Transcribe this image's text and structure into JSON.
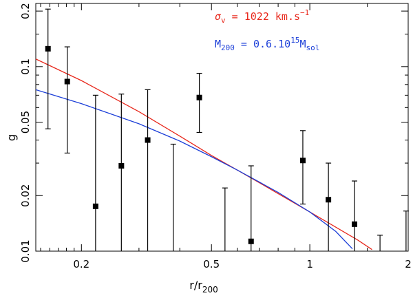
{
  "chart_data": {
    "type": "scatter",
    "xscale": "log",
    "yscale": "log",
    "xlim": [
      0.145,
      2.0
    ],
    "ylim": [
      0.01,
      0.22
    ],
    "xlabel": "r/r",
    "xlabel_sub": "200",
    "ylabel": "g",
    "xticks": [
      {
        "value": 0.2,
        "label": "0.2"
      },
      {
        "value": 0.5,
        "label": "0.5"
      },
      {
        "value": 1,
        "label": "1"
      },
      {
        "value": 2,
        "label": "2"
      }
    ],
    "yticks": [
      {
        "value": 0.01,
        "label": "0.01"
      },
      {
        "value": 0.02,
        "label": "0.02"
      },
      {
        "value": 0.05,
        "label": "0.05"
      },
      {
        "value": 0.1,
        "label": "0.1"
      },
      {
        "value": 0.2,
        "label": "0.2"
      }
    ],
    "points": [
      {
        "x": 0.158,
        "y": 0.125,
        "ylo": 0.046,
        "yhi": 0.205
      },
      {
        "x": 0.181,
        "y": 0.083,
        "ylo": 0.034,
        "yhi": 0.128
      },
      {
        "x": 0.221,
        "y": 0.0175,
        "ylo": 0.01,
        "yhi": 0.07
      },
      {
        "x": 0.265,
        "y": 0.029,
        "ylo": 0.01,
        "yhi": 0.071
      },
      {
        "x": 0.319,
        "y": 0.04,
        "ylo": 0.01,
        "yhi": 0.075
      },
      {
        "x": 0.382,
        "y": null,
        "ylo": 0.01,
        "yhi": 0.038
      },
      {
        "x": 0.459,
        "y": 0.068,
        "ylo": 0.044,
        "yhi": 0.092
      },
      {
        "x": 0.55,
        "y": null,
        "ylo": 0.01,
        "yhi": 0.022
      },
      {
        "x": 0.661,
        "y": 0.0113,
        "ylo": 0.01,
        "yhi": 0.029
      },
      {
        "x": 0.952,
        "y": 0.031,
        "ylo": 0.018,
        "yhi": 0.045
      },
      {
        "x": 1.14,
        "y": 0.019,
        "ylo": 0.01,
        "yhi": 0.03
      },
      {
        "x": 1.37,
        "y": 0.014,
        "ylo": 0.01,
        "yhi": 0.024
      },
      {
        "x": 1.64,
        "y": null,
        "ylo": 0.01,
        "yhi": 0.0122
      },
      {
        "x": 1.97,
        "y": null,
        "ylo": 0.01,
        "yhi": 0.0165
      }
    ],
    "series": [
      {
        "name": "sigma_v",
        "color": "#e8281c",
        "label_symbol": "σ",
        "label_sub": "v",
        "label_text": " = 1022 km.s",
        "label_sup": "−1",
        "x": [
          0.145,
          0.2,
          0.3,
          0.4,
          0.5,
          0.6,
          0.7,
          0.8,
          1.0,
          1.2,
          1.4,
          1.55
        ],
        "y": [
          0.11,
          0.084,
          0.057,
          0.042,
          0.033,
          0.0275,
          0.0235,
          0.0205,
          0.0163,
          0.0135,
          0.0115,
          0.0102
        ]
      },
      {
        "name": "M200",
        "color": "#1c3fd8",
        "label_text": "M",
        "label_sub": "200",
        "label_mid": " = 0.6.10",
        "label_sup": "15",
        "label_end": "M",
        "label_end_sub": "sol",
        "x": [
          0.145,
          0.2,
          0.3,
          0.4,
          0.5,
          0.6,
          0.7,
          0.8,
          1.0,
          1.2,
          1.35
        ],
        "y": [
          0.075,
          0.063,
          0.049,
          0.0395,
          0.0325,
          0.0275,
          0.0237,
          0.0208,
          0.0163,
          0.0128,
          0.0103
        ]
      }
    ]
  }
}
